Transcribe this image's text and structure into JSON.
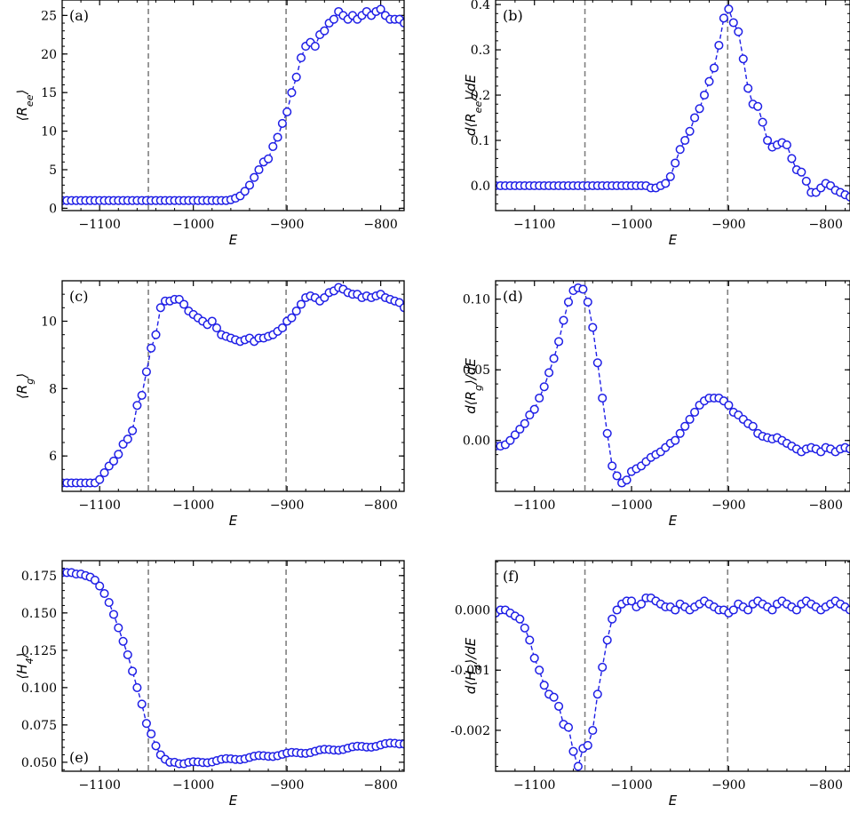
{
  "colors": {
    "series": "#1f1fe6",
    "marker_fill": "#ffffff",
    "vline": "#808080",
    "axes": "#000000"
  },
  "chart_data": [
    {
      "type": "scatter",
      "panel": "(a)",
      "xlabel": "E",
      "ylabel": "⟨R_ee⟩",
      "ylabel_main": "⟨R",
      "ylabel_sub": "ee",
      "ylabel_close": "⟩",
      "xlim": [
        -1140,
        -775
      ],
      "ylim": [
        -0.3,
        27
      ],
      "xticks": [
        -1100,
        -1000,
        -900,
        -800
      ],
      "xtick_labels": [
        "−1100",
        "−1000",
        "−900",
        "−800"
      ],
      "yticks": [
        0,
        5,
        10,
        15,
        20,
        25
      ],
      "ytick_labels": [
        "0",
        "5",
        "10",
        "15",
        "20",
        "25"
      ],
      "vlines": [
        -1048,
        -901
      ],
      "segments": [
        {
          "x0": -1140,
          "x1": -965,
          "step": 5,
          "flat": 1.0
        },
        {
          "x": [
            -960,
            -955,
            -950,
            -945,
            -940,
            -935,
            -930,
            -925,
            -920,
            -915,
            -910,
            -905,
            -900,
            -895,
            -890,
            -885,
            -880,
            -875,
            -870,
            -865,
            -860,
            -855,
            -850,
            -845,
            -840,
            -835,
            -830,
            -825,
            -820,
            -815,
            -810,
            -805,
            -800,
            -795,
            -790,
            -785,
            -780,
            -775
          ],
          "y": [
            1.1,
            1.3,
            1.6,
            2.2,
            3.0,
            4.0,
            5.0,
            6.0,
            6.4,
            8.0,
            9.2,
            11.0,
            12.5,
            15.0,
            17.0,
            19.5,
            21.0,
            21.5,
            21.0,
            22.5,
            23.0,
            24.0,
            24.5,
            25.5,
            25.0,
            24.5,
            25.0,
            24.5,
            25.0,
            25.5,
            25.0,
            25.5,
            25.8,
            25.0,
            24.5,
            24.5,
            24.5,
            24.0
          ]
        }
      ]
    },
    {
      "type": "scatter",
      "panel": "(b)",
      "xlabel": "E",
      "ylabel": "d⟨R_ee⟩/dE",
      "ylabel_main": "d⟨R",
      "ylabel_sub": "ee",
      "ylabel_close": "⟩/dE",
      "xlim": [
        -1140,
        -775
      ],
      "ylim": [
        -0.055,
        0.41
      ],
      "xticks": [
        -1100,
        -1000,
        -900,
        -800
      ],
      "xtick_labels": [
        "−1100",
        "−1000",
        "−900",
        "−800"
      ],
      "yticks": [
        0,
        0.1,
        0.2,
        0.3,
        0.4
      ],
      "ytick_labels": [
        "0.0",
        "0.1",
        "0.2",
        "0.3",
        "0.4"
      ],
      "vlines": [
        -1048,
        -901
      ],
      "segments": [
        {
          "x0": -1140,
          "x1": -985,
          "step": 5,
          "flat": 0.0
        },
        {
          "x": [
            -980,
            -975,
            -970,
            -965,
            -960,
            -955,
            -950,
            -945,
            -940,
            -935,
            -930,
            -925,
            -920,
            -915,
            -910,
            -905,
            -900,
            -895,
            -890,
            -885,
            -880,
            -875,
            -870,
            -865,
            -860,
            -855,
            -850,
            -845,
            -840,
            -835,
            -830,
            -825,
            -820,
            -815,
            -810,
            -805,
            -800,
            -795,
            -790,
            -785,
            -780,
            -775
          ],
          "y": [
            -0.005,
            -0.005,
            0.0,
            0.005,
            0.02,
            0.05,
            0.08,
            0.1,
            0.12,
            0.15,
            0.17,
            0.2,
            0.23,
            0.26,
            0.31,
            0.37,
            0.39,
            0.36,
            0.34,
            0.28,
            0.215,
            0.18,
            0.175,
            0.14,
            0.1,
            0.085,
            0.09,
            0.095,
            0.09,
            0.06,
            0.035,
            0.03,
            0.01,
            -0.015,
            -0.015,
            -0.005,
            0.005,
            0.0,
            -0.01,
            -0.015,
            -0.02,
            -0.025
          ]
        }
      ]
    },
    {
      "type": "scatter",
      "panel": "(c)",
      "xlabel": "E",
      "ylabel": "⟨R_g⟩",
      "ylabel_main": "⟨R",
      "ylabel_sub": "g",
      "ylabel_close": "⟩",
      "xlim": [
        -1140,
        -775
      ],
      "ylim": [
        4.95,
        11.2
      ],
      "xticks": [
        -1100,
        -1000,
        -900,
        -800
      ],
      "xtick_labels": [
        "−1100",
        "−1000",
        "−900",
        "−800"
      ],
      "yticks": [
        6,
        8,
        10
      ],
      "ytick_labels": [
        "6",
        "8",
        "10"
      ],
      "vlines": [
        -1048,
        -901
      ],
      "segments": [
        {
          "x0": -1140,
          "x1": -1105,
          "step": 5,
          "flat": 5.2
        },
        {
          "x": [
            -1100,
            -1095,
            -1090,
            -1085,
            -1080,
            -1075,
            -1070,
            -1065,
            -1060,
            -1055,
            -1050,
            -1045,
            -1040,
            -1035,
            -1030,
            -1025,
            -1020,
            -1015,
            -1010,
            -1005,
            -1000,
            -995,
            -990,
            -985,
            -980,
            -975,
            -970,
            -965,
            -960,
            -955,
            -950,
            -945,
            -940,
            -935,
            -930,
            -925,
            -920,
            -915,
            -910,
            -905,
            -900,
            -895,
            -890,
            -885,
            -880,
            -875,
            -870,
            -865,
            -860,
            -855,
            -850,
            -845,
            -840,
            -835,
            -830,
            -825,
            -820,
            -815,
            -810,
            -805,
            -800,
            -795,
            -790,
            -785,
            -780,
            -775
          ],
          "y": [
            5.3,
            5.5,
            5.7,
            5.85,
            6.05,
            6.35,
            6.5,
            6.75,
            7.5,
            7.8,
            8.5,
            9.2,
            9.6,
            10.4,
            10.6,
            10.6,
            10.65,
            10.65,
            10.5,
            10.3,
            10.2,
            10.1,
            10.0,
            9.9,
            10.0,
            9.8,
            9.6,
            9.55,
            9.5,
            9.45,
            9.4,
            9.45,
            9.5,
            9.4,
            9.5,
            9.5,
            9.55,
            9.6,
            9.7,
            9.8,
            10.0,
            10.1,
            10.3,
            10.5,
            10.7,
            10.75,
            10.7,
            10.6,
            10.7,
            10.85,
            10.9,
            11.0,
            10.95,
            10.85,
            10.8,
            10.8,
            10.7,
            10.75,
            10.7,
            10.75,
            10.8,
            10.7,
            10.65,
            10.6,
            10.55,
            10.4
          ]
        }
      ]
    },
    {
      "type": "scatter",
      "panel": "(d)",
      "xlabel": "E",
      "ylabel": "d⟨R_g⟩/dE",
      "ylabel_main": "d⟨R",
      "ylabel_sub": "g",
      "ylabel_close": "⟩/dE",
      "xlim": [
        -1140,
        -775
      ],
      "ylim": [
        -0.036,
        0.113
      ],
      "xticks": [
        -1100,
        -1000,
        -900,
        -800
      ],
      "xtick_labels": [
        "−1100",
        "−1000",
        "−900",
        "−800"
      ],
      "yticks": [
        0,
        0.05,
        0.1
      ],
      "ytick_labels": [
        "0.00",
        "0.05",
        "0.10"
      ],
      "vlines": [
        -1048,
        -901
      ],
      "segments": [
        {
          "x": [
            -1140,
            -1135,
            -1130,
            -1125,
            -1120,
            -1115,
            -1110,
            -1105,
            -1100,
            -1095,
            -1090,
            -1085,
            -1080,
            -1075,
            -1070,
            -1065,
            -1060,
            -1055,
            -1050,
            -1045,
            -1040,
            -1035,
            -1030,
            -1025,
            -1020,
            -1015,
            -1010,
            -1005,
            -1000,
            -995,
            -990,
            -985,
            -980,
            -975,
            -970,
            -965,
            -960,
            -955,
            -950,
            -945,
            -940,
            -935,
            -930,
            -925,
            -920,
            -915,
            -910,
            -905,
            -900,
            -895,
            -890,
            -885,
            -880,
            -875,
            -870,
            -865,
            -860,
            -855,
            -850,
            -845,
            -840,
            -835,
            -830,
            -825,
            -820,
            -815,
            -810,
            -805,
            -800,
            -795,
            -790,
            -785,
            -780,
            -775
          ],
          "y": [
            -0.004,
            -0.004,
            -0.003,
            0.0,
            0.004,
            0.008,
            0.012,
            0.018,
            0.022,
            0.03,
            0.038,
            0.048,
            0.058,
            0.07,
            0.085,
            0.098,
            0.106,
            0.108,
            0.107,
            0.098,
            0.08,
            0.055,
            0.03,
            0.005,
            -0.018,
            -0.025,
            -0.03,
            -0.028,
            -0.022,
            -0.02,
            -0.018,
            -0.015,
            -0.012,
            -0.01,
            -0.008,
            -0.005,
            -0.002,
            0.0,
            0.005,
            0.01,
            0.015,
            0.02,
            0.025,
            0.028,
            0.03,
            0.03,
            0.03,
            0.028,
            0.025,
            0.02,
            0.018,
            0.015,
            0.012,
            0.01,
            0.005,
            0.003,
            0.002,
            0.001,
            0.002,
            0.0,
            -0.002,
            -0.004,
            -0.006,
            -0.008,
            -0.006,
            -0.005,
            -0.006,
            -0.008,
            -0.005,
            -0.006,
            -0.008,
            -0.006,
            -0.005,
            -0.006
          ]
        }
      ]
    },
    {
      "type": "scatter",
      "panel": "(e)",
      "xlabel": "E",
      "ylabel": "⟨H_4⟩",
      "ylabel_main": "⟨H",
      "ylabel_sub": "4",
      "ylabel_close": "⟩",
      "xlim": [
        -1140,
        -775
      ],
      "ylim": [
        0.044,
        0.185
      ],
      "xticks": [
        -1100,
        -1000,
        -900,
        -800
      ],
      "xtick_labels": [
        "−1100",
        "−1000",
        "−900",
        "−800"
      ],
      "yticks": [
        0.05,
        0.075,
        0.1,
        0.125,
        0.15,
        0.175
      ],
      "ytick_labels": [
        "0.050",
        "0.075",
        "0.100",
        "0.125",
        "0.150",
        "0.175"
      ],
      "vlines": [
        -1048,
        -901
      ],
      "segments": [
        {
          "x": [
            -1140,
            -1135,
            -1130,
            -1125,
            -1120,
            -1115,
            -1110,
            -1105,
            -1100,
            -1095,
            -1090,
            -1085,
            -1080,
            -1075,
            -1070,
            -1065,
            -1060,
            -1055,
            -1050,
            -1045,
            -1040,
            -1035,
            -1030,
            -1025,
            -1020,
            -1015
          ],
          "y": [
            0.177,
            0.177,
            0.177,
            0.176,
            0.176,
            0.175,
            0.174,
            0.172,
            0.168,
            0.163,
            0.157,
            0.149,
            0.14,
            0.131,
            0.122,
            0.111,
            0.1,
            0.089,
            0.076,
            0.069,
            0.061,
            0.055,
            0.052,
            0.05,
            0.05,
            0.049
          ]
        },
        {
          "x0": -1010,
          "x1": -775,
          "step": 5,
          "from": 0.049,
          "to": 0.063
        }
      ]
    },
    {
      "type": "scatter",
      "panel": "(f)",
      "xlabel": "E",
      "ylabel": "d⟨H_4⟩/dE",
      "ylabel_main": "d⟨H",
      "ylabel_sub": "4",
      "ylabel_close": "⟩/dE",
      "xlim": [
        -1140,
        -775
      ],
      "ylim": [
        -0.00268,
        0.00082
      ],
      "xticks": [
        -1100,
        -1000,
        -900,
        -800
      ],
      "xtick_labels": [
        "−1100",
        "−1000",
        "−900",
        "−800"
      ],
      "yticks": [
        0,
        -0.001,
        -0.002
      ],
      "ytick_labels": [
        "0.000",
        "-0.001",
        "-0.002"
      ],
      "vlines": [
        -1048,
        -901
      ],
      "segments": [
        {
          "x": [
            -1140,
            -1135,
            -1130,
            -1125,
            -1120,
            -1115,
            -1110,
            -1105,
            -1100,
            -1095,
            -1090,
            -1085,
            -1080,
            -1075,
            -1070,
            -1065,
            -1060,
            -1055,
            -1050,
            -1045,
            -1040,
            -1035,
            -1030,
            -1025,
            -1020,
            -1015,
            -1010,
            -1005,
            -1000,
            -995,
            -990,
            -985,
            -980,
            -975,
            -970,
            -965,
            -960,
            -955,
            -950,
            -945,
            -940,
            -935,
            -930,
            -925,
            -920,
            -915,
            -910,
            -905,
            -900,
            -895,
            -890,
            -885,
            -880,
            -875,
            -870,
            -865,
            -860,
            -855,
            -850,
            -845,
            -840,
            -835,
            -830,
            -825,
            -820,
            -815,
            -810,
            -805,
            -800,
            -795,
            -790,
            -785,
            -780,
            -775
          ],
          "y": [
            -5e-05,
            0.0,
            0.0,
            -5e-05,
            -0.0001,
            -0.00015,
            -0.0003,
            -0.0005,
            -0.0008,
            -0.001,
            -0.00125,
            -0.0014,
            -0.00145,
            -0.0016,
            -0.0019,
            -0.00195,
            -0.00235,
            -0.0026,
            -0.0023,
            -0.00225,
            -0.002,
            -0.0014,
            -0.00095,
            -0.0005,
            -0.00015,
            0.0,
            0.0001,
            0.00015,
            0.00015,
            5e-05,
            0.0001,
            0.0002,
            0.0002,
            0.00015,
            0.0001,
            5e-05,
            5e-05,
            0.0,
            0.0001,
            5e-05,
            0.0,
            5e-05,
            0.0001,
            0.00015,
            0.0001,
            5e-05,
            0.0,
            0.0,
            -5e-05,
            0.0,
            0.0001,
            5e-05,
            0.0,
            0.0001,
            0.00015,
            0.0001,
            5e-05,
            0.0,
            0.0001,
            0.00015,
            0.0001,
            5e-05,
            0.0,
            0.0001,
            0.00015,
            0.0001,
            5e-05,
            0.0,
            5e-05,
            0.0001,
            0.00015,
            0.0001,
            5e-05,
            0.0
          ]
        }
      ]
    }
  ]
}
